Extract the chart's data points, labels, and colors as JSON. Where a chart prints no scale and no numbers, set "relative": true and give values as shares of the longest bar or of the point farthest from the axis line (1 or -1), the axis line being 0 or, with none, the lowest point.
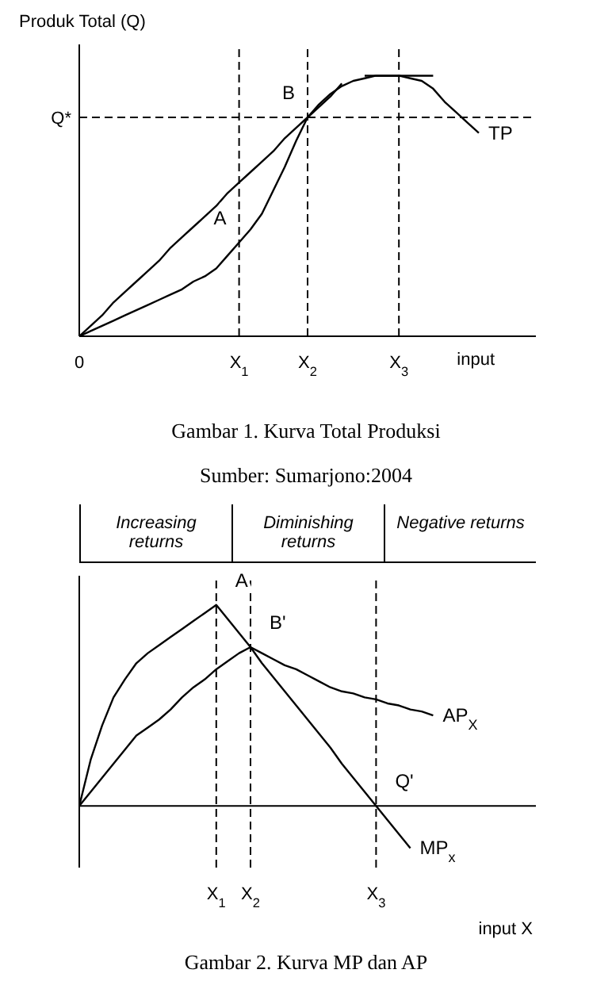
{
  "chart_data": [
    {
      "type": "line",
      "title": "Gambar 1. Kurva Total Produksi",
      "ylabel": "Produk Total (Q)",
      "xlabel": "input",
      "relative": true,
      "categories": [
        "0",
        null,
        null,
        null,
        null,
        null,
        null,
        null,
        null,
        null,
        null,
        null,
        null,
        null,
        "X$_{1}$",
        null,
        null,
        null,
        null,
        null,
        "X$_{2}$",
        null,
        null,
        null,
        null,
        null,
        null,
        null,
        "X$_{3}$",
        null,
        null,
        null,
        null,
        null,
        null,
        null,
        null,
        null,
        null,
        null,
        null
      ],
      "series": [
        {
          "name": "TP",
          "color": "#000000",
          "values": [
            0,
            0.02,
            0.04,
            0.06,
            0.08,
            0.1,
            0.12,
            0.14,
            0.16,
            0.18,
            0.21,
            0.23,
            0.26,
            0.31,
            0.36,
            0.41,
            0.47,
            0.56,
            0.65,
            0.75,
            0.84,
            0.89,
            0.93,
            0.96,
            0.98,
            0.99,
            1,
            1,
            1,
            0.99,
            0.98,
            0.95,
            0.9,
            0.86,
            0.82,
            0.78,
            null,
            null,
            null,
            null,
            null
          ]
        },
        {
          "color": "#000000",
          "values": [
            0,
            0.04,
            0.08,
            0.13,
            0.17,
            0.21,
            0.25,
            0.29,
            0.34,
            0.38,
            0.42,
            0.46,
            0.5,
            0.55,
            0.59,
            0.63,
            0.67,
            0.71,
            0.76,
            0.8,
            0.84,
            0.88,
            0.92,
            0.97,
            null,
            null,
            null,
            null,
            null,
            null,
            null,
            null,
            null,
            null,
            null,
            null,
            null,
            null,
            null,
            null,
            null
          ]
        },
        {
          "color": "#000000",
          "values": [
            null,
            null,
            null,
            null,
            null,
            null,
            null,
            null,
            null,
            null,
            null,
            null,
            null,
            null,
            null,
            null,
            null,
            null,
            null,
            null,
            null,
            null,
            null,
            null,
            null,
            1,
            1,
            1,
            1,
            1,
            1,
            1,
            null,
            null,
            null,
            null,
            null,
            null,
            null,
            null,
            null
          ]
        }
      ],
      "ref_lines": [
        {
          "axis": "y",
          "value": 0.84,
          "label": "Q*",
          "line_style": "dashed"
        },
        {
          "axis": "x",
          "value": "X$_{1}$",
          "line_style": "dashed"
        },
        {
          "axis": "x",
          "value": "X$_{2}$",
          "line_style": "dashed"
        },
        {
          "axis": "x",
          "value": "X$_{3}$",
          "line_style": "dashed"
        }
      ],
      "annotations": [
        {
          "text": "A",
          "x": "X$_{1}$",
          "y": 0.36
        },
        {
          "text": "B",
          "x": "X$_{2}$",
          "y": 0.84
        },
        "Sumber: Sumarjono:2004"
      ],
      "marker": "none",
      "line_style": "solid"
    },
    {
      "type": "line",
      "title": "Gambar 2. Kurva MP dan AP",
      "xlabel": "input X",
      "relative": true,
      "categories": [
        null,
        null,
        null,
        null,
        null,
        null,
        null,
        null,
        null,
        null,
        null,
        null,
        "X$_{1}$",
        null,
        null,
        "X$_{2}$",
        null,
        null,
        null,
        null,
        null,
        null,
        null,
        null,
        null,
        null,
        "X$_{3}$",
        null,
        null,
        null,
        null,
        null,
        null,
        null,
        null,
        null,
        null,
        null,
        null,
        null,
        null
      ],
      "series": [
        {
          "name": "MP$_{x}$",
          "color": "#000000",
          "values": [
            0,
            0.23,
            0.4,
            0.54,
            0.63,
            0.71,
            0.76,
            0.8,
            0.84,
            0.88,
            0.92,
            0.96,
            1,
            0.93,
            0.86,
            0.79,
            0.71,
            0.64,
            0.57,
            0.5,
            0.43,
            0.36,
            0.29,
            0.21,
            0.14,
            0.07,
            0,
            -0.07,
            -0.14,
            -0.21,
            null,
            null,
            null,
            null,
            null,
            null,
            null,
            null,
            null,
            null,
            null
          ]
        },
        {
          "name": "AP$_{X}$",
          "color": "#000000",
          "values": [
            0,
            0.07,
            0.14,
            0.21,
            0.28,
            0.35,
            0.39,
            0.43,
            0.48,
            0.54,
            0.59,
            0.63,
            0.68,
            0.72,
            0.76,
            0.79,
            0.76,
            0.73,
            0.7,
            0.68,
            0.65,
            0.62,
            0.59,
            0.57,
            0.56,
            0.54,
            0.53,
            0.51,
            0.5,
            0.48,
            0.47,
            0.45,
            null,
            null,
            null,
            null,
            null,
            null,
            null,
            null,
            null
          ]
        }
      ],
      "ref_lines": [
        {
          "axis": "x",
          "value": "X$_{1}$",
          "line_style": "dashed"
        },
        {
          "axis": "x",
          "value": "X$_{2}$",
          "line_style": "dashed"
        },
        {
          "axis": "x",
          "value": "X$_{3}$",
          "line_style": "dashed"
        }
      ],
      "annotations": [
        "Increasing returns",
        "Diminishing returns",
        "Negative returns",
        {
          "text": "A",
          "x": "X$_{1}$",
          "y": 1
        },
        {
          "text": "B'",
          "x": "X$_{2}$",
          "y": 0.79
        },
        {
          "text": "Q'",
          "x": "X$_{3}$",
          "y": 0
        }
      ],
      "marker": "none",
      "line_style": "solid"
    }
  ]
}
